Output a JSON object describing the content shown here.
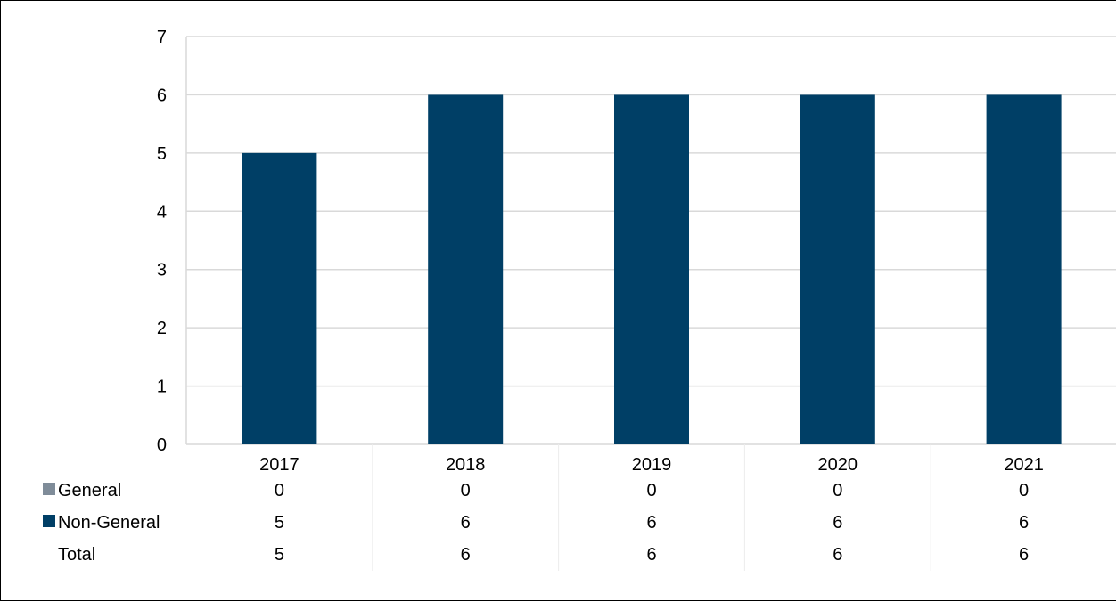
{
  "chart_data": {
    "type": "bar",
    "stacked": true,
    "categories": [
      "2017",
      "2018",
      "2019",
      "2020",
      "2021"
    ],
    "series": [
      {
        "name": "General",
        "values": [
          0,
          0,
          0,
          0,
          0
        ],
        "color": "#7f8c99"
      },
      {
        "name": "Non-General",
        "values": [
          5,
          6,
          6,
          6,
          6
        ],
        "color": "#003f66"
      }
    ],
    "table_rows": [
      {
        "label": "General",
        "values": [
          "0",
          "0",
          "0",
          "0",
          "0"
        ],
        "color": "#7f8c99"
      },
      {
        "label": "Non-General",
        "values": [
          "5",
          "6",
          "6",
          "6",
          "6"
        ],
        "color": "#003f66"
      },
      {
        "label": "Total",
        "values": [
          "5",
          "6",
          "6",
          "6",
          "6"
        ]
      }
    ],
    "y_ticks": [
      "0",
      "1",
      "2",
      "3",
      "4",
      "5",
      "6",
      "7"
    ],
    "ylim": [
      0,
      7
    ],
    "grid": true,
    "legend": "data table",
    "title": "",
    "xlabel": "",
    "ylabel": ""
  }
}
